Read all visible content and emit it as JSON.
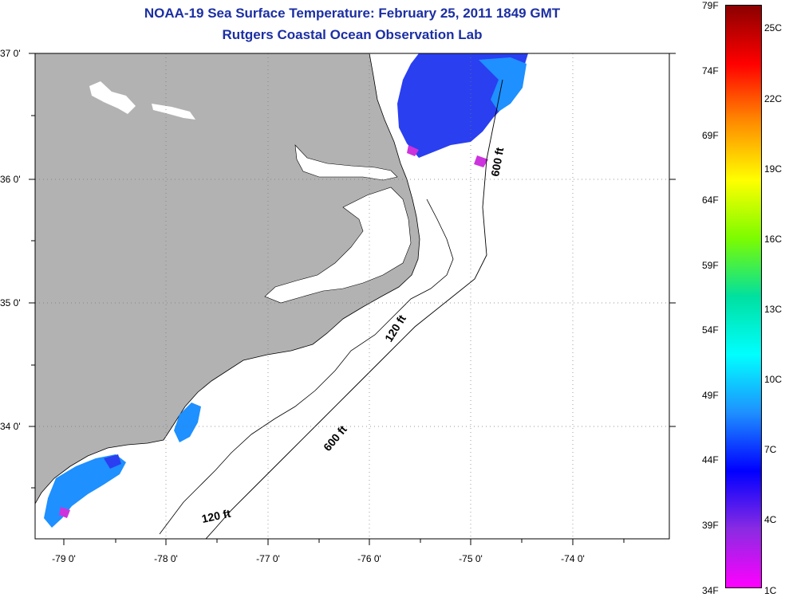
{
  "title": "NOAA-19 Sea Surface Temperature:  February 25, 2011 1849 GMT",
  "subtitle": "Rutgers Coastal Ocean Observation Lab",
  "map": {
    "lat_labels": [
      "37 0'",
      "36 0'",
      "35 0'",
      "34 0'"
    ],
    "lon_labels": [
      "-79 0'",
      "-78 0'",
      "-77 0'",
      "-76 0'",
      "-75 0'",
      "-74 0'"
    ],
    "contour_labels": [
      "600 ft",
      "120 ft",
      "600 ft",
      "120 ft"
    ],
    "land_color": "#b2b2b2",
    "water_color": "#ffffff"
  },
  "colorbar": {
    "fahrenheit_labels": [
      "79F",
      "74F",
      "69F",
      "64F",
      "59F",
      "54F",
      "49F",
      "44F",
      "39F",
      "34F"
    ],
    "celsius_labels": [
      "25C",
      "22C",
      "19C",
      "16C",
      "13C",
      "10C",
      "7C",
      "4C",
      "1C"
    ],
    "colors": [
      "#8b0000",
      "#ff0000",
      "#ff8c00",
      "#ffff00",
      "#7cfc00",
      "#00e0a0",
      "#00ffff",
      "#1e90ff",
      "#0000ff",
      "#8a2be2",
      "#ff00ff"
    ]
  }
}
